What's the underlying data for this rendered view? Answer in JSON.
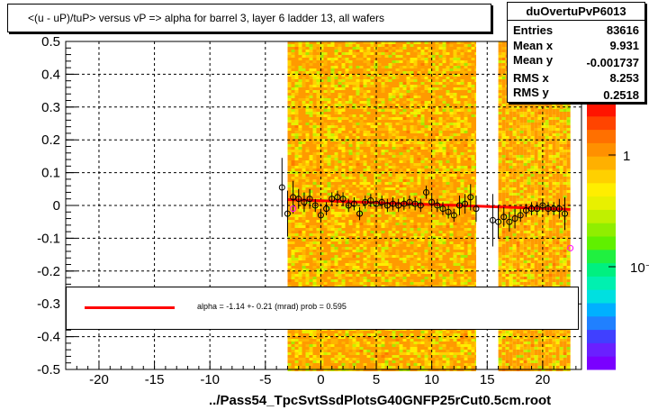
{
  "title": "<(u - uP)/tuP> versus   vP => alpha for barrel 3, layer 6 ladder 13, all wafers",
  "stats": {
    "name": "duOvertuPvP6013",
    "rows": [
      {
        "key": "Entries",
        "value": "83616"
      },
      {
        "key": "Mean x",
        "value": "9.931"
      },
      {
        "key": "Mean y",
        "value": "-0.001737"
      },
      {
        "key": "RMS x",
        "value": "8.253"
      },
      {
        "key": "RMS y",
        "value": "0.2518"
      }
    ]
  },
  "fit_legend": "alpha =    -1.14 +-  0.21 (mrad) prob = 0.595",
  "colors": {
    "fit_line": "#ff0000",
    "points": "#000000",
    "open_points": "#ff00ff"
  },
  "chart_data": {
    "type": "heatmap",
    "title": "<(u - uP)/tuP> versus   vP => alpha for barrel 3, layer 6 ladder 13, all wafers",
    "xlabel": "../Pass54_TpcSvtSsdPlotsG40GNFP25rCut0.5cm.root",
    "ylabel": "",
    "xlim": [
      -23,
      23.5
    ],
    "ylim": [
      -0.5,
      0.5
    ],
    "x_ticks": [
      -20,
      -15,
      -10,
      -5,
      0,
      5,
      10,
      15,
      20
    ],
    "y_ticks": [
      -0.5,
      -0.4,
      -0.3,
      -0.2,
      -0.1,
      0,
      0.1,
      0.2,
      0.3,
      0.4,
      0.5
    ],
    "z_scale": "log",
    "colorbar_ticks": [
      "1",
      "10⁻¹"
    ],
    "grid": true,
    "occupied_x_bands": [
      [
        -3,
        14
      ],
      [
        16,
        22.5
      ]
    ],
    "profile_points": [
      {
        "x": -3.5,
        "y": 0.055,
        "err": 0.09
      },
      {
        "x": -3.0,
        "y": -0.025,
        "err": 0.07
      },
      {
        "x": -2.5,
        "y": 0.025,
        "err": 0.05
      },
      {
        "x": -2.0,
        "y": 0.02,
        "err": 0.03
      },
      {
        "x": -1.5,
        "y": 0.01,
        "err": 0.03
      },
      {
        "x": -1.0,
        "y": 0.02,
        "err": 0.03
      },
      {
        "x": -0.5,
        "y": 0.0,
        "err": 0.02
      },
      {
        "x": 0.0,
        "y": -0.03,
        "err": 0.02
      },
      {
        "x": 0.5,
        "y": -0.01,
        "err": 0.02
      },
      {
        "x": 1.0,
        "y": 0.02,
        "err": 0.02
      },
      {
        "x": 1.5,
        "y": 0.025,
        "err": 0.02
      },
      {
        "x": 2.0,
        "y": 0.02,
        "err": 0.02
      },
      {
        "x": 2.5,
        "y": 0.0,
        "err": 0.02
      },
      {
        "x": 3.0,
        "y": 0.005,
        "err": 0.02
      },
      {
        "x": 3.5,
        "y": -0.025,
        "err": 0.02
      },
      {
        "x": 4.0,
        "y": 0.01,
        "err": 0.02
      },
      {
        "x": 4.5,
        "y": 0.015,
        "err": 0.02
      },
      {
        "x": 5.0,
        "y": 0.005,
        "err": 0.02
      },
      {
        "x": 5.5,
        "y": 0.01,
        "err": 0.02
      },
      {
        "x": 6.0,
        "y": 0.0,
        "err": 0.02
      },
      {
        "x": 6.5,
        "y": 0.005,
        "err": 0.02
      },
      {
        "x": 7.0,
        "y": 0.0,
        "err": 0.02
      },
      {
        "x": 7.5,
        "y": 0.005,
        "err": 0.02
      },
      {
        "x": 8.0,
        "y": 0.01,
        "err": 0.02
      },
      {
        "x": 8.5,
        "y": 0.005,
        "err": 0.02
      },
      {
        "x": 9.0,
        "y": 0.0,
        "err": 0.02
      },
      {
        "x": 9.5,
        "y": 0.04,
        "err": 0.02
      },
      {
        "x": 10.0,
        "y": 0.01,
        "err": 0.02
      },
      {
        "x": 10.5,
        "y": 0.0,
        "err": 0.02
      },
      {
        "x": 11.0,
        "y": -0.01,
        "err": 0.02
      },
      {
        "x": 11.5,
        "y": -0.02,
        "err": 0.02
      },
      {
        "x": 12.0,
        "y": -0.03,
        "err": 0.02
      },
      {
        "x": 12.5,
        "y": 0.0,
        "err": 0.03
      },
      {
        "x": 13.0,
        "y": 0.005,
        "err": 0.03
      },
      {
        "x": 13.5,
        "y": 0.025,
        "err": 0.04
      },
      {
        "x": 14.0,
        "y": -0.01,
        "err": 0.04
      },
      {
        "x": 15.5,
        "y": -0.045,
        "err": 0.08
      },
      {
        "x": 16.0,
        "y": -0.05,
        "err": 0.05
      },
      {
        "x": 16.5,
        "y": -0.035,
        "err": 0.03
      },
      {
        "x": 17.0,
        "y": -0.05,
        "err": 0.03
      },
      {
        "x": 17.5,
        "y": -0.04,
        "err": 0.03
      },
      {
        "x": 18.0,
        "y": -0.03,
        "err": 0.02
      },
      {
        "x": 18.5,
        "y": -0.015,
        "err": 0.02
      },
      {
        "x": 19.0,
        "y": -0.01,
        "err": 0.02
      },
      {
        "x": 19.5,
        "y": -0.01,
        "err": 0.02
      },
      {
        "x": 20.0,
        "y": 0.0,
        "err": 0.02
      },
      {
        "x": 20.5,
        "y": -0.01,
        "err": 0.02
      },
      {
        "x": 21.0,
        "y": -0.01,
        "err": 0.02
      },
      {
        "x": 21.5,
        "y": -0.01,
        "err": 0.03
      },
      {
        "x": 22.0,
        "y": -0.025,
        "err": 0.05
      }
    ],
    "open_points": [
      {
        "x": -2.5,
        "y": -0.01
      },
      {
        "x": 22.5,
        "y": -0.13
      }
    ],
    "fit_line": {
      "x": [
        -3,
        22.5
      ],
      "y": [
        0.018,
        -0.012
      ]
    }
  }
}
